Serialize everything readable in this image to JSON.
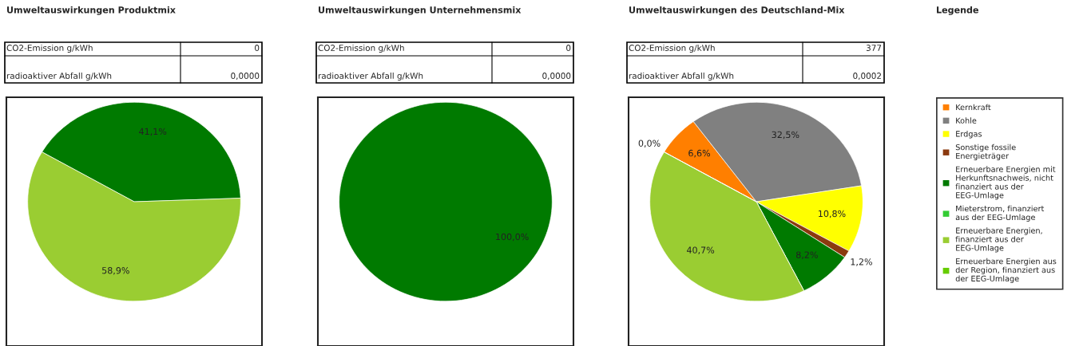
{
  "chart_data": [
    {
      "type": "pie",
      "title": "Umweltauswirkungen Produktmix",
      "categories": [
        null,
        null
      ],
      "values": [
        41.1,
        58.9
      ],
      "colors": [
        "#007a00",
        "#9acd32"
      ],
      "value_labels": [
        "41,1%",
        "58,9%"
      ],
      "annotations": [
        "CO2-Emission g/kWh",
        "0",
        "radioaktiver Abfall g/kWh",
        "0,0000"
      ]
    },
    {
      "type": "pie",
      "title": "Umweltauswirkungen Unternehmensmix",
      "categories": [
        null
      ],
      "values": [
        100
      ],
      "colors": [
        "#007a00"
      ],
      "value_labels": [
        "100,0%"
      ],
      "annotations": [
        "CO2-Emission g/kWh",
        "0",
        "radioaktiver Abfall g/kWh",
        "0,0000"
      ]
    },
    {
      "type": "pie",
      "title": "Umweltauswirkungen des Deutschland-Mix",
      "categories": [
        "Kernkraft",
        "Kohle",
        "Erdgas",
        "Sonstige fossile Energieträger",
        "Erneuerbare Energien mit Herkunftsnachweis, nicht finanziert aus der EEG-Umlage",
        "Mieterstrom, finanziert aus der EEG-Umlage",
        "Erneuerbare Energien, finanziert aus der EEG-Umlage",
        "Erneuerbare Energien aus der Region, finanziert aus der EEG-Umlage"
      ],
      "values": [
        6.6,
        32.5,
        10.8,
        1.2,
        8.2,
        0.0,
        40.7,
        0.0
      ],
      "colors": [
        "#ff7f00",
        "#808080",
        "#ffff00",
        "#8b3a0f",
        "#007a00",
        "#33cc33",
        "#9acd32",
        "#66cc00"
      ],
      "value_labels": [
        "6,6%",
        "32,5%",
        "10,8%",
        "1,2%",
        "8,2%",
        null,
        "40,7%",
        "0,0%"
      ],
      "legend": "right",
      "legend_title": "Legende",
      "annotations": [
        "CO2-Emission g/kWh",
        "377",
        "radioaktiver Abfall g/kWh",
        "0,0002"
      ]
    }
  ]
}
